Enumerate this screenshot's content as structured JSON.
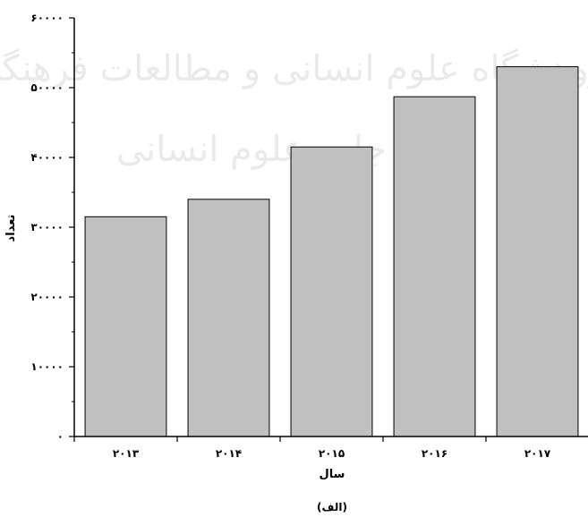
{
  "chart_data": {
    "type": "bar",
    "categories": [
      "۲۰۱۳",
      "۲۰۱۴",
      "۲۰۱۵",
      "۲۰۱۶",
      "۲۰۱۷"
    ],
    "values": [
      31500,
      34000,
      41500,
      48700,
      53000
    ],
    "xlabel": "سال",
    "ylabel": "تعداد",
    "ylim": [
      0,
      60000
    ],
    "yticks": [
      0,
      10000,
      20000,
      30000,
      40000,
      50000,
      60000
    ],
    "ytick_labels": [
      "۰",
      "۱۰۰۰۰",
      "۲۰۰۰۰",
      "۳۰۰۰۰",
      "۴۰۰۰۰",
      "۵۰۰۰۰",
      "۶۰۰۰۰"
    ],
    "bar_color": "#c0c0c0",
    "grid": false,
    "caption": "(الف)"
  },
  "watermark": {
    "line1": "پژوهشگاه علوم انسانی و مطالعات فرهنگی",
    "line2": "پرتال جامع علوم انسانی"
  }
}
